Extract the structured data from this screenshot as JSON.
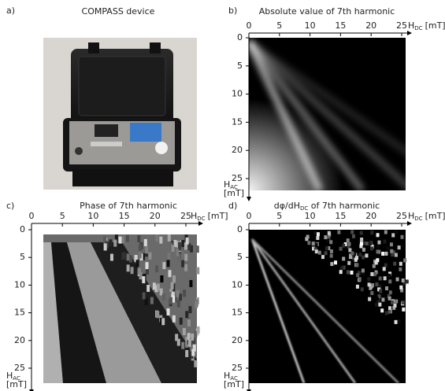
{
  "figure": {
    "panels": [
      {
        "label": "a)",
        "title": "COMPASS device"
      },
      {
        "label": "b)",
        "title": "Absolute value of 7th harmonic",
        "x_label": {
          "text": "H",
          "sub": "DC",
          "unit": "[mT]"
        },
        "y_label": {
          "text": "H",
          "sub": "AC",
          "unit": "[mT]"
        },
        "xlim": [
          0,
          25
        ],
        "ylim": [
          0,
          25
        ],
        "xticks": [
          0,
          5,
          10,
          15,
          20,
          25
        ],
        "yticks": [
          0,
          5,
          10,
          15,
          20,
          25
        ]
      },
      {
        "label": "c)",
        "title": "Phase of 7th harmonic",
        "x_label": {
          "text": "H",
          "sub": "DC",
          "unit": "[mT]"
        },
        "y_label": {
          "text": "H",
          "sub": "AC",
          "unit": "[mT]"
        },
        "xlim": [
          0,
          25
        ],
        "ylim": [
          0,
          25
        ],
        "xticks": [
          0,
          5,
          10,
          15,
          20,
          25
        ],
        "yticks": [
          0,
          5,
          10,
          15,
          20,
          25
        ]
      },
      {
        "label": "d)",
        "title": "dφ/dH",
        "title_sub": "DC",
        "title_rest": " of 7th harmonic",
        "x_label": {
          "text": "H",
          "sub": "DC",
          "unit": "[mT]"
        },
        "y_label": {
          "text": "H",
          "sub": "AC",
          "unit": "[mT]"
        },
        "xlim": [
          0,
          25
        ],
        "ylim": [
          0,
          25
        ],
        "xticks": [
          0,
          5,
          10,
          15,
          20,
          25
        ],
        "yticks": [
          0,
          5,
          10,
          15,
          20,
          25
        ]
      }
    ]
  }
}
